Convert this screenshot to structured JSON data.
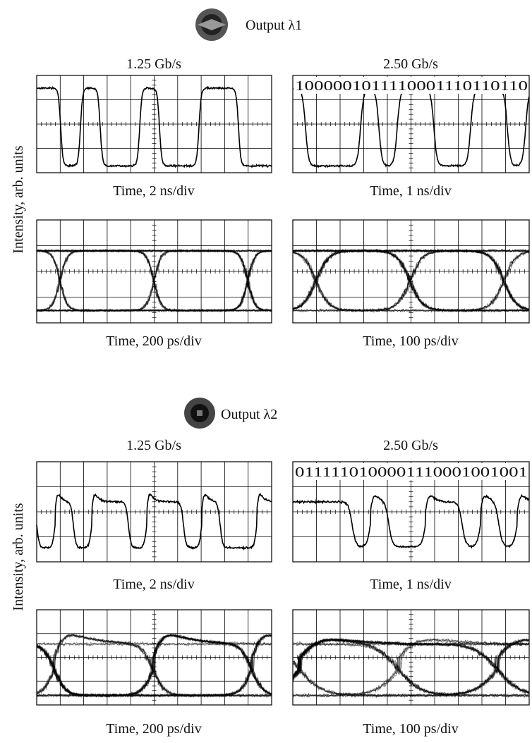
{
  "figure": {
    "ylabel": "Intensity, arb. units",
    "sections": [
      {
        "title": "Output λ1",
        "rates": [
          "1.25 Gb/s",
          "2.50 Gb/s"
        ],
        "panels": [
          {
            "xlabel": "Time, 2 ns/div"
          },
          {
            "bits": "1000001011110001110110110",
            "xlabel": "Time, 1 ns/div"
          },
          {
            "xlabel": "Time, 200 ps/div"
          },
          {
            "xlabel": "Time, 100 ps/div"
          }
        ]
      },
      {
        "title": "Output λ2",
        "rates": [
          "1.25 Gb/s",
          "2.50 Gb/s"
        ],
        "panels": [
          {
            "xlabel": "Time, 2 ns/div"
          },
          {
            "bits": "0111110100001110001001001",
            "xlabel": "Time, 1 ns/div"
          },
          {
            "xlabel": "Time, 200 ps/div"
          },
          {
            "xlabel": "Time, 100 ps/div"
          }
        ]
      }
    ]
  }
}
